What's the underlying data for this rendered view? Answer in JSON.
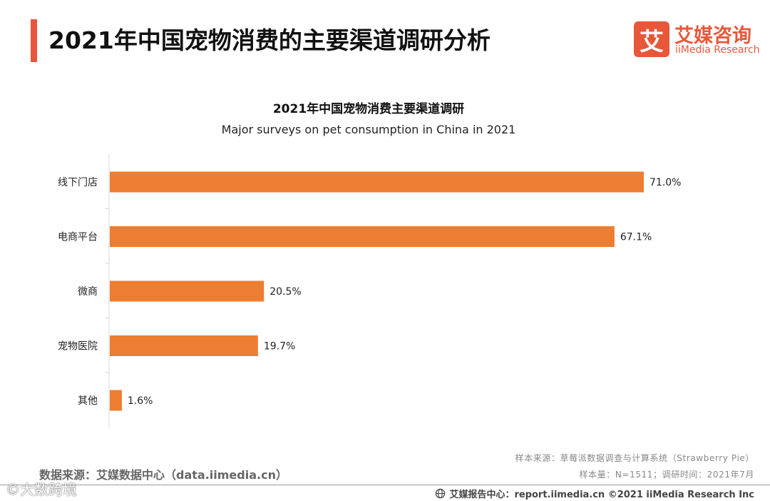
{
  "header": {
    "title": "2021年中国宠物消费的主要渠道调研分析",
    "logo_mark": "艾",
    "logo_cn": "艾媒咨询",
    "logo_en": "iiMedia Research"
  },
  "colors": {
    "accent": "#e8573a",
    "bar": "#ed7d31",
    "axis": "#d9d9d9"
  },
  "chart_data": {
    "type": "bar",
    "orientation": "horizontal",
    "title": "2021年中国宠物消费主要渠道调研",
    "subtitle": "Major surveys on pet consumption in China in 2021",
    "categories": [
      "线下门店",
      "电商平台",
      "微商",
      "宠物医院",
      "其他"
    ],
    "values": [
      71.0,
      67.1,
      20.5,
      19.7,
      1.6
    ],
    "value_labels": [
      "71.0%",
      "67.1%",
      "20.5%",
      "19.7%",
      "1.6%"
    ],
    "unit": "%",
    "xlim": [
      0,
      71.0
    ],
    "grid": false,
    "legend": "none"
  },
  "footer": {
    "source": "数据来源：艾媒数据中心（data.iimedia.cn）",
    "sample_source": "样本来源：草莓派数据调查与计算系统（Strawberry Pie）",
    "sample_size": "样本量：N=1511；调研时间：2021年7月",
    "copyright": "艾媒报告中心：report.iimedia.cn ©2021  iiMedia Research  Inc",
    "watermark": "©大数跨境",
    "globe_icon": "globe-icon"
  }
}
